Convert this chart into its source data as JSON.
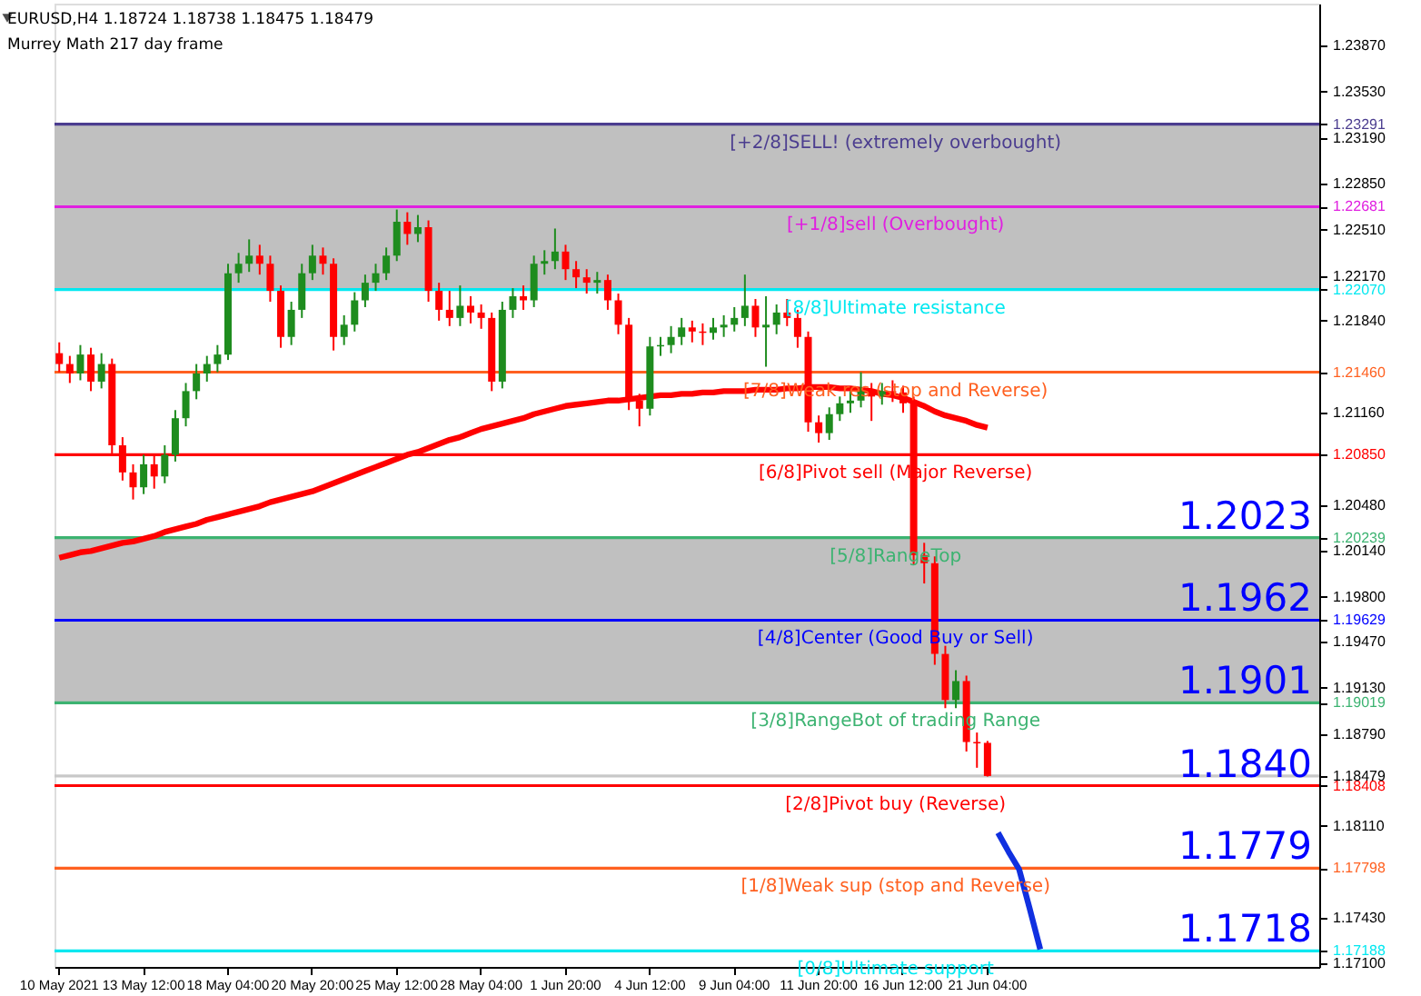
{
  "chart_data": {
    "type": "candlestick",
    "title": "EURUSD,H4  1.18724 1.18738 1.18475 1.18479",
    "subtitle": "Murrey Math 217 day frame",
    "categories": [
      "10 May 2021",
      null,
      null,
      null,
      null,
      null,
      null,
      null,
      "13 May 12:00",
      null,
      null,
      null,
      null,
      null,
      null,
      null,
      "18 May 04:00",
      null,
      null,
      null,
      null,
      null,
      null,
      null,
      "20 May 20:00",
      null,
      null,
      null,
      null,
      null,
      null,
      null,
      "25 May 12:00",
      null,
      null,
      null,
      null,
      null,
      null,
      null,
      "28 May 04:00",
      null,
      null,
      null,
      null,
      null,
      null,
      null,
      "1 Jun 20:00",
      null,
      null,
      null,
      null,
      null,
      null,
      null,
      "4 Jun 12:00",
      null,
      null,
      null,
      null,
      null,
      null,
      null,
      "9 Jun 04:00",
      null,
      null,
      null,
      null,
      null,
      null,
      null,
      "11 Jun 20:00",
      null,
      null,
      null,
      null,
      null,
      null,
      null,
      "16 Jun 12:00",
      null,
      null,
      null,
      null,
      null,
      null,
      null,
      "21 Jun 04:00",
      null,
      null,
      null,
      null,
      null,
      null,
      null,
      null,
      null,
      null,
      null,
      null,
      null,
      null,
      null,
      null,
      null,
      null,
      null,
      null,
      null,
      null,
      null,
      null,
      null,
      null,
      null,
      null,
      null,
      null,
      null
    ],
    "ohlc": [
      [
        1.216,
        1.2168,
        1.2146,
        1.2152
      ],
      [
        1.2152,
        1.2158,
        1.2138,
        1.2145
      ],
      [
        1.2145,
        1.2166,
        1.214,
        1.2159
      ],
      [
        1.2159,
        1.2164,
        1.2132,
        1.2139
      ],
      [
        1.2139,
        1.216,
        1.2134,
        1.2152
      ],
      [
        1.2152,
        1.2156,
        1.2086,
        1.2092
      ],
      [
        1.2092,
        1.2098,
        1.2066,
        1.2072
      ],
      [
        1.2072,
        1.2078,
        1.2052,
        1.2061
      ],
      [
        1.2061,
        1.2085,
        1.2056,
        1.2078
      ],
      [
        1.2078,
        1.2084,
        1.206,
        1.2069
      ],
      [
        1.2069,
        1.2092,
        1.2064,
        1.2085
      ],
      [
        1.2085,
        1.2118,
        1.208,
        1.2112
      ],
      [
        1.2112,
        1.2138,
        1.2106,
        1.2132
      ],
      [
        1.2132,
        1.2152,
        1.2126,
        1.2145
      ],
      [
        1.2145,
        1.2158,
        1.2139,
        1.2152
      ],
      [
        1.2152,
        1.2166,
        1.2146,
        1.2159
      ],
      [
        1.2159,
        1.2226,
        1.2155,
        1.2219
      ],
      [
        1.2219,
        1.2234,
        1.2212,
        1.2226
      ],
      [
        1.2226,
        1.2244,
        1.222,
        1.2232
      ],
      [
        1.2232,
        1.224,
        1.2218,
        1.2226
      ],
      [
        1.2226,
        1.2232,
        1.2198,
        1.2206
      ],
      [
        1.2206,
        1.221,
        1.2164,
        1.2172
      ],
      [
        1.2172,
        1.2198,
        1.2166,
        1.2192
      ],
      [
        1.2192,
        1.2226,
        1.2186,
        1.2219
      ],
      [
        1.2219,
        1.224,
        1.2214,
        1.2232
      ],
      [
        1.2232,
        1.2238,
        1.2218,
        1.2226
      ],
      [
        1.2226,
        1.223,
        1.2162,
        1.2172
      ],
      [
        1.2172,
        1.2188,
        1.2166,
        1.2181
      ],
      [
        1.2181,
        1.2205,
        1.2176,
        1.2199
      ],
      [
        1.2199,
        1.2218,
        1.2194,
        1.2212
      ],
      [
        1.2212,
        1.2226,
        1.2206,
        1.2219
      ],
      [
        1.2219,
        1.2238,
        1.2214,
        1.2232
      ],
      [
        1.2232,
        1.2266,
        1.2228,
        1.2257
      ],
      [
        1.2257,
        1.2264,
        1.224,
        1.2248
      ],
      [
        1.2248,
        1.2262,
        1.2242,
        1.2253
      ],
      [
        1.2253,
        1.2258,
        1.2198,
        1.2206
      ],
      [
        1.2206,
        1.2212,
        1.2184,
        1.2192
      ],
      [
        1.2192,
        1.2206,
        1.218,
        1.2186
      ],
      [
        1.2186,
        1.221,
        1.218,
        1.2195
      ],
      [
        1.2195,
        1.2202,
        1.2182,
        1.219
      ],
      [
        1.219,
        1.2196,
        1.2178,
        1.2186
      ],
      [
        1.2186,
        1.219,
        1.2132,
        1.2139
      ],
      [
        1.2139,
        1.2198,
        1.2134,
        1.2192
      ],
      [
        1.2192,
        1.2208,
        1.2186,
        1.2202
      ],
      [
        1.2202,
        1.221,
        1.2192,
        1.2199
      ],
      [
        1.2199,
        1.2232,
        1.2194,
        1.2226
      ],
      [
        1.2226,
        1.2236,
        1.2218,
        1.2228
      ],
      [
        1.2228,
        1.2252,
        1.2222,
        1.2235
      ],
      [
        1.2235,
        1.224,
        1.2214,
        1.2222
      ],
      [
        1.2222,
        1.2228,
        1.2208,
        1.2216
      ],
      [
        1.2216,
        1.2222,
        1.2204,
        1.2212
      ],
      [
        1.2212,
        1.222,
        1.2204,
        1.2214
      ],
      [
        1.2214,
        1.2218,
        1.2192,
        1.2199
      ],
      [
        1.2199,
        1.2204,
        1.2174,
        1.2181
      ],
      [
        1.2181,
        1.2186,
        1.2118,
        1.2125
      ],
      [
        1.2125,
        1.213,
        1.2106,
        1.2119
      ],
      [
        1.2119,
        1.2172,
        1.2114,
        1.2165
      ],
      [
        1.2165,
        1.2172,
        1.2158,
        1.2166
      ],
      [
        1.2166,
        1.218,
        1.216,
        1.2172
      ],
      [
        1.2172,
        1.2186,
        1.2166,
        1.2179
      ],
      [
        1.2179,
        1.2184,
        1.2168,
        1.2176
      ],
      [
        1.2176,
        1.2182,
        1.2166,
        1.2175
      ],
      [
        1.2175,
        1.2186,
        1.217,
        1.2179
      ],
      [
        1.2179,
        1.2188,
        1.2172,
        1.2181
      ],
      [
        1.2181,
        1.2194,
        1.2176,
        1.2186
      ],
      [
        1.2186,
        1.2218,
        1.218,
        1.2195
      ],
      [
        1.2195,
        1.22,
        1.2172,
        1.2179
      ],
      [
        1.2179,
        1.2202,
        1.215,
        1.2181
      ],
      [
        1.2181,
        1.2196,
        1.2174,
        1.219
      ],
      [
        1.219,
        1.22,
        1.218,
        1.2186
      ],
      [
        1.2186,
        1.2192,
        1.2164,
        1.2172
      ],
      [
        1.2172,
        1.2176,
        1.2102,
        1.2109
      ],
      [
        1.2109,
        1.2114,
        1.2094,
        1.2101
      ],
      [
        1.2101,
        1.212,
        1.2096,
        1.2115
      ],
      [
        1.2115,
        1.2128,
        1.211,
        1.2123
      ],
      [
        1.2123,
        1.2132,
        1.2116,
        1.2125
      ],
      [
        1.2125,
        1.2146,
        1.212,
        1.2132
      ],
      [
        1.2132,
        1.2138,
        1.211,
        1.2128
      ],
      [
        1.2128,
        1.2138,
        1.2122,
        1.2132
      ],
      [
        1.2132,
        1.214,
        1.2124,
        1.2131
      ],
      [
        1.2131,
        1.2136,
        1.2116,
        1.2123
      ],
      [
        1.2123,
        1.2128,
        1.2004,
        1.2011
      ],
      [
        1.2011,
        1.202,
        1.199,
        1.2005
      ],
      [
        1.2005,
        1.201,
        1.193,
        1.1938
      ],
      [
        1.1938,
        1.1944,
        1.1898,
        1.1904
      ],
      [
        1.1904,
        1.1926,
        1.1898,
        1.1918
      ],
      [
        1.1918,
        1.1922,
        1.1866,
        1.1873
      ],
      [
        1.1873,
        1.188,
        1.1854,
        1.1872
      ],
      [
        1.18724,
        1.18738,
        1.18475,
        1.18479
      ],
      null,
      null,
      null,
      null,
      null,
      null,
      null,
      null,
      null,
      null,
      null,
      null,
      null,
      null,
      null,
      null,
      null,
      null,
      null,
      null,
      null,
      null,
      null,
      null,
      null,
      null,
      null,
      null,
      null,
      null,
      null
    ],
    "colors": [
      "#ff0000",
      "#ff0000",
      "#1e8c1e",
      "#ff0000",
      "#1e8c1e",
      "#ff0000",
      "#ff0000",
      "#ff0000",
      "#1e8c1e",
      "#ff0000",
      "#1e8c1e",
      "#1e8c1e",
      "#1e8c1e",
      "#1e8c1e",
      "#1e8c1e",
      "#1e8c1e",
      "#1e8c1e",
      "#1e8c1e",
      "#1e8c1e",
      "#ff0000",
      "#ff0000",
      "#ff0000",
      "#1e8c1e",
      "#1e8c1e",
      "#1e8c1e",
      "#ff0000",
      "#ff0000",
      "#1e8c1e",
      "#1e8c1e",
      "#1e8c1e",
      "#1e8c1e",
      "#1e8c1e",
      "#1e8c1e",
      "#ff0000",
      "#1e8c1e",
      "#ff0000",
      "#ff0000",
      "#ff0000",
      "#1e8c1e",
      "#ff0000",
      "#ff0000",
      "#ff0000",
      "#1e8c1e",
      "#1e8c1e",
      "#ff0000",
      "#1e8c1e",
      "#1e8c1e",
      "#1e8c1e",
      "#ff0000",
      "#ff0000",
      "#ff0000",
      "#1e8c1e",
      "#ff0000",
      "#ff0000",
      "#ff0000",
      "#ff0000",
      "#1e8c1e",
      "#1e8c1e",
      "#1e8c1e",
      "#1e8c1e",
      "#ff0000",
      "#ff0000",
      "#1e8c1e",
      "#1e8c1e",
      "#1e8c1e",
      "#1e8c1e",
      "#ff0000",
      "#1e8c1e",
      "#1e8c1e",
      "#ff0000",
      "#ff0000",
      "#ff0000",
      "#ff0000",
      "#1e8c1e",
      "#1e8c1e",
      "#1e8c1e",
      "#1e8c1e",
      "#ff0000",
      "#1e8c1e",
      "#ff0000",
      "#ff0000",
      "#ff0000",
      "#ff0000",
      "#ff0000",
      "#ff0000",
      "#1e8c1e",
      "#ff0000",
      "#ff0000",
      "#ff0000",
      null,
      null,
      null,
      null,
      null,
      null,
      null,
      null,
      null,
      null,
      null,
      null,
      null,
      null,
      null,
      null,
      null,
      null,
      null,
      null,
      null,
      null,
      null,
      null,
      null,
      null,
      null,
      null,
      null,
      null,
      null
    ],
    "series": [
      {
        "type": "line",
        "color": "#ff0000",
        "values": [
          1.2009,
          1.2011,
          1.2013,
          1.2014,
          1.2016,
          1.2018,
          1.202,
          1.2021,
          1.2023,
          1.2025,
          1.2028,
          1.203,
          1.2032,
          1.2034,
          1.2037,
          1.2039,
          1.2041,
          1.2043,
          1.2045,
          1.2047,
          1.205,
          1.2052,
          1.2054,
          1.2056,
          1.2058,
          1.2061,
          1.2064,
          1.2067,
          1.207,
          1.2073,
          1.2076,
          1.2079,
          1.2082,
          1.2085,
          1.2087,
          1.209,
          1.2093,
          1.2096,
          1.2098,
          1.2101,
          1.2104,
          1.2106,
          1.2108,
          1.211,
          1.2112,
          1.2115,
          1.2117,
          1.2119,
          1.2121,
          1.2122,
          1.2123,
          1.2124,
          1.2125,
          1.2125,
          1.2126,
          1.2127,
          1.2128,
          1.2129,
          1.2129,
          1.213,
          1.213,
          1.2131,
          1.2131,
          1.2132,
          1.2132,
          1.2132,
          1.2133,
          1.2133,
          1.2133,
          1.2134,
          1.2134,
          1.2135,
          1.2135,
          1.2135,
          1.2134,
          1.2134,
          1.2133,
          1.2132,
          1.213,
          1.2129,
          1.2127,
          1.2124,
          1.2121,
          1.2117,
          1.2114,
          1.2112,
          1.211,
          1.2107,
          1.2105,
          null,
          null,
          null,
          null,
          null,
          null,
          null,
          null,
          null,
          null,
          null,
          null,
          null,
          null,
          null,
          null,
          null,
          null,
          null,
          null,
          null,
          null,
          null,
          null,
          null,
          null,
          null,
          null,
          null,
          null,
          null
        ]
      },
      {
        "type": "line",
        "color": "#1030e0",
        "values": [
          null,
          null,
          null,
          null,
          null,
          null,
          null,
          null,
          null,
          null,
          null,
          null,
          null,
          null,
          null,
          null,
          null,
          null,
          null,
          null,
          null,
          null,
          null,
          null,
          null,
          null,
          null,
          null,
          null,
          null,
          null,
          null,
          null,
          null,
          null,
          null,
          null,
          null,
          null,
          null,
          null,
          null,
          null,
          null,
          null,
          null,
          null,
          null,
          null,
          null,
          null,
          null,
          null,
          null,
          null,
          null,
          null,
          null,
          null,
          null,
          null,
          null,
          null,
          null,
          null,
          null,
          null,
          null,
          null,
          null,
          null,
          null,
          null,
          null,
          null,
          null,
          null,
          null,
          null,
          null,
          null,
          null,
          null,
          null,
          null,
          null,
          null,
          null,
          null,
          1.1806,
          1.1792,
          1.1779,
          1.175,
          1.172,
          null,
          null,
          null,
          null,
          null,
          null,
          null,
          null,
          null,
          null,
          null,
          null,
          null,
          null,
          null,
          null,
          null,
          null,
          null,
          null,
          null,
          null,
          null,
          null,
          null,
          null
        ]
      }
    ],
    "ylim": [
      1.1707,
      1.2418
    ],
    "yticks": [
      {
        "value": 1.2387,
        "label": "1.23870"
      },
      {
        "value": 1.2353,
        "label": "1.23530"
      },
      {
        "value": 1.23291,
        "label": "1.23291"
      },
      {
        "value": 1.2319,
        "label": "1.23190"
      },
      {
        "value": 1.2285,
        "label": "1.22850"
      },
      {
        "value": 1.22681,
        "label": "1.22681"
      },
      {
        "value": 1.2251,
        "label": "1.22510"
      },
      {
        "value": 1.2217,
        "label": "1.22170"
      },
      {
        "value": 1.2207,
        "label": "1.22070"
      },
      {
        "value": 1.2184,
        "label": "1.21840"
      },
      {
        "value": 1.2146,
        "label": "1.21460"
      },
      {
        "value": 1.2116,
        "label": "1.21160"
      },
      {
        "value": 1.2085,
        "label": "1.20850"
      },
      {
        "value": 1.2048,
        "label": "1.20480"
      },
      {
        "value": 1.20239,
        "label": "1.20239"
      },
      {
        "value": 1.2014,
        "label": "1.20140"
      },
      {
        "value": 1.198,
        "label": "1.19800"
      },
      {
        "value": 1.19629,
        "label": "1.19629"
      },
      {
        "value": 1.1947,
        "label": "1.19470"
      },
      {
        "value": 1.1913,
        "label": "1.19130"
      },
      {
        "value": 1.19019,
        "label": "1.19019"
      },
      {
        "value": 1.1879,
        "label": "1.18790"
      },
      {
        "value": 1.18479,
        "label": "1.18479"
      },
      {
        "value": 1.18408,
        "label": "1.18408"
      },
      {
        "value": 1.1811,
        "label": "1.18110"
      },
      {
        "value": 1.17798,
        "label": "1.17798"
      },
      {
        "value": 1.1743,
        "label": "1.17430"
      },
      {
        "value": 1.17188,
        "label": "1.17188"
      },
      {
        "value": 1.171,
        "label": "1.17100"
      }
    ],
    "bands": [
      {
        "axis": "y",
        "from": 1.2207,
        "to": 1.23291,
        "color": "#c0c0c0"
      },
      {
        "axis": "y",
        "from": 1.19019,
        "to": 1.20239,
        "color": "#c0c0c0"
      }
    ],
    "ref_lines": [
      {
        "axis": "y",
        "value": 1.23291,
        "label": "[+2/8]SELL! (extremely overbought)",
        "color": "#4b3d8f"
      },
      {
        "axis": "y",
        "value": 1.22681,
        "label": "[+1/8]sell (Overbought)",
        "color": "#e020e0"
      },
      {
        "axis": "y",
        "value": 1.2207,
        "label": "[8/8]Ultimate resistance",
        "color": "#00e8f0"
      },
      {
        "axis": "y",
        "value": 1.2146,
        "label": "[7/8]Weak res (stop and Reverse)",
        "color": "#ff6020"
      },
      {
        "axis": "y",
        "value": 1.2085,
        "label": "[6/8]Pivot sell (Major Reverse)",
        "color": "#ff0000"
      },
      {
        "axis": "y",
        "value": 1.20239,
        "label": "[5/8]RangeTop",
        "color": "#3cb371"
      },
      {
        "axis": "y",
        "value": 1.19629,
        "label": "[4/8]Center (Good Buy or Sell)",
        "color": "#0000ff"
      },
      {
        "axis": "y",
        "value": 1.19019,
        "label": "[3/8]RangeBot of trading Range",
        "color": "#3cb371"
      },
      {
        "axis": "y",
        "value": 1.18479,
        "label": null,
        "color": "#c8c8c8"
      },
      {
        "axis": "y",
        "value": 1.18408,
        "label": "[2/8]Pivot buy (Reverse)",
        "color": "#ff0000"
      },
      {
        "axis": "y",
        "value": 1.17798,
        "label": "[1/8]Weak sup (stop and Reverse)",
        "color": "#ff6020"
      },
      {
        "axis": "y",
        "value": 1.17188,
        "label": "[0/8]Ultimate support",
        "color": "#00e8f0"
      }
    ],
    "annotations": [
      {
        "text": "1.2023",
        "y": 1.20239
      },
      {
        "text": "1.1962",
        "y": 1.19629
      },
      {
        "text": "1.1901",
        "y": 1.19019
      },
      {
        "text": "1.1840",
        "y": 1.18408
      },
      {
        "text": "1.1779",
        "y": 1.17798
      },
      {
        "text": "1.1718",
        "y": 1.17188
      }
    ]
  }
}
